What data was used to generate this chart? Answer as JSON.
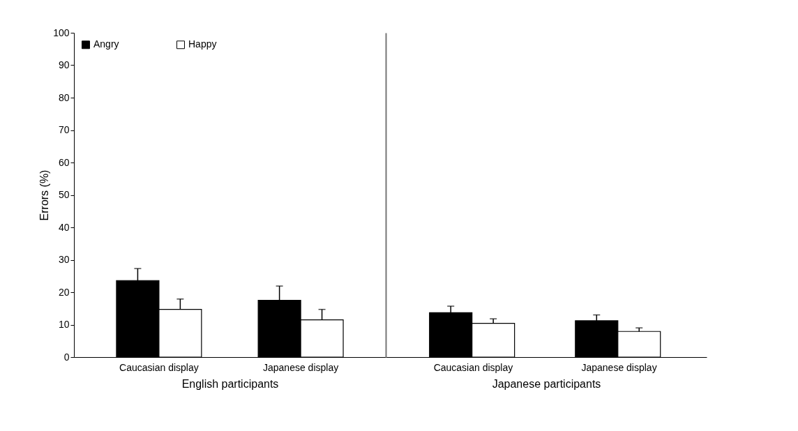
{
  "chart_data": [
    {
      "type": "bar",
      "categories": [
        "Caucasian display",
        "Japanese display"
      ],
      "xlabel": "English participants",
      "ylabel": "Errors (%)",
      "ylim": [
        0,
        100
      ],
      "yticks": [
        0,
        10,
        20,
        30,
        40,
        50,
        60,
        70,
        80,
        90,
        100
      ],
      "grid": false,
      "legend": "top left",
      "series": [
        {
          "name": "Angry",
          "color": "#000000",
          "values": [
            23.6,
            17.5
          ],
          "errors": [
            3.7,
            4.4
          ]
        },
        {
          "name": "Happy",
          "color": "#ffffff",
          "values": [
            14.7,
            11.5
          ],
          "errors": [
            3.2,
            3.2
          ]
        }
      ]
    },
    {
      "type": "bar",
      "categories": [
        "Caucasian display",
        "Japanese display"
      ],
      "xlabel": "Japanese participants",
      "ylim": [
        0,
        100
      ],
      "yticks": [
        0,
        10,
        20,
        30,
        40,
        50,
        60,
        70,
        80,
        90,
        100
      ],
      "grid": false,
      "tick_labels": "x",
      "series": [
        {
          "color": "#000000",
          "values": [
            13.7,
            11.2
          ],
          "errors": [
            2.0,
            1.8
          ]
        },
        {
          "color": "#ffffff",
          "values": [
            10.4,
            7.9
          ],
          "errors": [
            1.4,
            1.1
          ]
        }
      ]
    }
  ]
}
